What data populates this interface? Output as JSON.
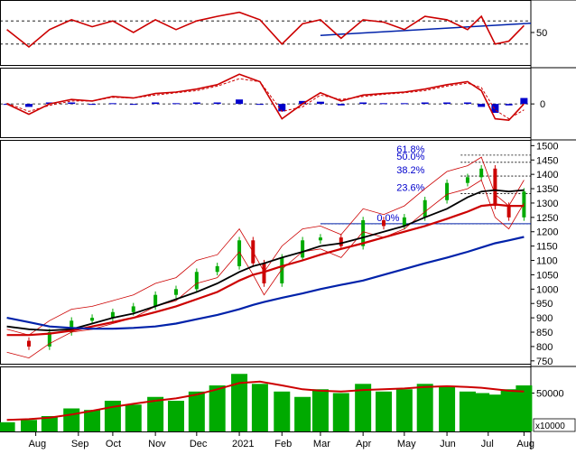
{
  "colors": {
    "price_line": "#cc0000",
    "price_up": "#00aa00",
    "price_down": "#cc0000",
    "ma_black": "#000000",
    "ma_red": "#cc0000",
    "ma_blue": "#0022aa",
    "fib_text": "#0000cc",
    "volume_bar": "#00aa00",
    "volume_ma": "#cc0000",
    "macd_hist": "#0000cc",
    "grid": "#000000"
  },
  "chart_data": [
    {
      "type": "line",
      "panel": "rsi",
      "ylim": [
        0,
        100
      ],
      "y_ticks": [
        {
          "label": "50",
          "value": 50
        }
      ],
      "dashed_levels": [
        70,
        30
      ],
      "x": [
        "2020-07-25",
        "2020-08-10",
        "2020-08-25",
        "2020-09-10",
        "2020-09-25",
        "2020-10-10",
        "2020-10-25",
        "2020-11-10",
        "2020-11-25",
        "2020-12-10",
        "2020-12-25",
        "2021-01-10",
        "2021-01-25",
        "2021-02-10",
        "2021-02-25",
        "2021-03-10",
        "2021-03-25",
        "2021-04-10",
        "2021-04-25",
        "2021-05-10",
        "2021-05-25",
        "2021-06-10",
        "2021-06-25",
        "2021-07-05",
        "2021-07-15",
        "2021-07-25",
        "2021-08-05"
      ],
      "series": [
        {
          "values": [
            55,
            25,
            55,
            72,
            60,
            70,
            50,
            72,
            55,
            70,
            78,
            85,
            72,
            30,
            65,
            72,
            40,
            72,
            68,
            55,
            78,
            72,
            55,
            78,
            30,
            35,
            62
          ]
        }
      ],
      "trendline": {
        "x": [
          "2021-03-10",
          "2021-08-10"
        ],
        "y": [
          45,
          66
        ]
      }
    },
    {
      "type": "line",
      "panel": "macd",
      "y_ticks": [
        {
          "label": "0",
          "value": 0
        }
      ],
      "x": [
        "2020-07-25",
        "2020-08-10",
        "2020-08-25",
        "2020-09-10",
        "2020-09-25",
        "2020-10-10",
        "2020-10-25",
        "2020-11-10",
        "2020-11-25",
        "2020-12-10",
        "2020-12-25",
        "2021-01-10",
        "2021-01-25",
        "2021-02-10",
        "2021-02-25",
        "2021-03-10",
        "2021-03-25",
        "2021-04-10",
        "2021-04-25",
        "2021-05-10",
        "2021-05-25",
        "2021-06-10",
        "2021-06-25",
        "2021-07-05",
        "2021-07-15",
        "2021-07-25",
        "2021-08-05"
      ],
      "series": [
        {
          "values": [
            0,
            -14,
            0,
            6,
            4,
            10,
            8,
            14,
            16,
            20,
            26,
            40,
            30,
            -20,
            0,
            15,
            4,
            12,
            14,
            16,
            20,
            26,
            30,
            18,
            -20,
            -22,
            0
          ]
        },
        {
          "values": [
            1,
            -10,
            -2,
            4,
            4,
            9,
            8,
            12,
            15,
            18,
            24,
            34,
            30,
            -10,
            -4,
            12,
            6,
            10,
            13,
            15,
            18,
            24,
            28,
            22,
            -8,
            -20,
            -8
          ]
        },
        {
          "values": [
            -1,
            -4,
            2,
            2,
            0,
            1,
            0,
            2,
            1,
            2,
            2,
            6,
            0,
            -10,
            4,
            3,
            -2,
            2,
            1,
            1,
            2,
            2,
            2,
            -4,
            -12,
            -2,
            8
          ]
        }
      ]
    },
    {
      "type": "line",
      "panel": "price",
      "ylim": [
        740,
        1520
      ],
      "y_ticks": [
        {
          "label": "750",
          "value": 750
        },
        {
          "label": "800",
          "value": 800
        },
        {
          "label": "850",
          "value": 850
        },
        {
          "label": "900",
          "value": 900
        },
        {
          "label": "950",
          "value": 950
        },
        {
          "label": "1000",
          "value": 1000
        },
        {
          "label": "1050",
          "value": 1050
        },
        {
          "label": "1100",
          "value": 1100
        },
        {
          "label": "1150",
          "value": 1150
        },
        {
          "label": "1200",
          "value": 1200
        },
        {
          "label": "1250",
          "value": 1250
        },
        {
          "label": "1300",
          "value": 1300
        },
        {
          "label": "1350",
          "value": 1350
        },
        {
          "label": "1400",
          "value": 1400
        },
        {
          "label": "1450",
          "value": 1450
        },
        {
          "label": "1500",
          "value": 1500
        }
      ],
      "fibonacci": [
        {
          "label": "61.8%",
          "value": 1467
        },
        {
          "label": "50.0%",
          "value": 1442
        },
        {
          "label": "38.2%",
          "value": 1394
        },
        {
          "label": "23.6%",
          "value": 1333
        },
        {
          "label": "0.0%",
          "value": 1228
        }
      ],
      "x": [
        "2020-07-25",
        "2020-08-10",
        "2020-08-25",
        "2020-09-10",
        "2020-09-25",
        "2020-10-10",
        "2020-10-25",
        "2020-11-10",
        "2020-11-25",
        "2020-12-10",
        "2020-12-25",
        "2021-01-10",
        "2021-01-20",
        "2021-01-28",
        "2021-02-10",
        "2021-02-25",
        "2021-03-10",
        "2021-03-25",
        "2021-04-10",
        "2021-04-25",
        "2021-05-10",
        "2021-05-25",
        "2021-06-10",
        "2021-06-25",
        "2021-07-05",
        "2021-07-15",
        "2021-07-25",
        "2021-08-05"
      ],
      "series": [
        {
          "values": [
            820,
            800,
            850,
            890,
            900,
            920,
            940,
            980,
            1000,
            1060,
            1080,
            1170,
            1090,
            1020,
            1110,
            1170,
            1180,
            1150,
            1240,
            1220,
            1250,
            1310,
            1370,
            1390,
            1420,
            1290,
            1250,
            1340
          ]
        },
        {
          "values": [
            870,
            860,
            856,
            860,
            880,
            900,
            915,
            940,
            965,
            990,
            1020,
            1060,
            1080,
            1090,
            1110,
            1130,
            1150,
            1160,
            1180,
            1200,
            1220,
            1250,
            1280,
            1320,
            1340,
            1345,
            1340,
            1345
          ]
        },
        {
          "values": [
            840,
            840,
            845,
            855,
            870,
            885,
            900,
            920,
            940,
            965,
            990,
            1030,
            1050,
            1060,
            1080,
            1100,
            1120,
            1140,
            1160,
            1180,
            1200,
            1220,
            1245,
            1270,
            1290,
            1295,
            1290,
            1290
          ]
        },
        {
          "values": [
            900,
            885,
            870,
            865,
            862,
            862,
            865,
            870,
            880,
            895,
            910,
            930,
            945,
            955,
            970,
            985,
            1000,
            1015,
            1030,
            1050,
            1070,
            1090,
            1110,
            1130,
            1145,
            1160,
            1170,
            1182
          ]
        }
      ],
      "support_line": {
        "x": [
          "2021-03-10",
          "2021-08-10"
        ],
        "y": [
          1228,
          1228
        ]
      }
    },
    {
      "type": "bar",
      "panel": "volume",
      "units": "x10000",
      "y_ticks": [
        {
          "label": "50000",
          "value": 50000
        }
      ],
      "x": [
        "2020-07-25",
        "2020-08-10",
        "2020-08-25",
        "2020-09-10",
        "2020-09-25",
        "2020-10-10",
        "2020-10-25",
        "2020-11-10",
        "2020-11-25",
        "2020-12-10",
        "2020-12-25",
        "2021-01-10",
        "2021-01-25",
        "2021-02-10",
        "2021-02-25",
        "2021-03-10",
        "2021-03-25",
        "2021-04-10",
        "2021-04-25",
        "2021-05-10",
        "2021-05-25",
        "2021-06-10",
        "2021-06-25",
        "2021-07-05",
        "2021-07-15",
        "2021-07-25",
        "2021-08-05"
      ],
      "values": [
        12000,
        15000,
        20000,
        30000,
        28000,
        40000,
        35000,
        45000,
        40000,
        52000,
        60000,
        75000,
        62000,
        52000,
        45000,
        55000,
        50000,
        62000,
        52000,
        55000,
        62000,
        58000,
        52000,
        50000,
        48000,
        55000,
        60000
      ],
      "ma": [
        15000,
        16000,
        18000,
        22000,
        27000,
        32000,
        36000,
        40000,
        43000,
        48000,
        55000,
        63000,
        65000,
        60000,
        55000,
        53000,
        52000,
        54000,
        55000,
        56000,
        58000,
        59000,
        58000,
        57000,
        55000,
        53000,
        52000
      ]
    }
  ],
  "x_labels": [
    {
      "label": "Aug",
      "date": "2020-08-15"
    },
    {
      "label": "Sep",
      "date": "2020-09-15"
    },
    {
      "label": "Oct",
      "date": "2020-10-10"
    },
    {
      "label": "Nov",
      "date": "2020-11-10"
    },
    {
      "label": "Dec",
      "date": "2020-12-10"
    },
    {
      "label": "2021",
      "date": "2021-01-10"
    },
    {
      "label": "Feb",
      "date": "2021-02-10"
    },
    {
      "label": "Mar",
      "date": "2021-03-10"
    },
    {
      "label": "Apr",
      "date": "2021-04-10"
    },
    {
      "label": "May",
      "date": "2021-05-10"
    },
    {
      "label": "Jun",
      "date": "2021-06-10"
    },
    {
      "label": "Jul",
      "date": "2021-07-10"
    },
    {
      "label": "Aug",
      "date": "2021-08-05"
    }
  ]
}
